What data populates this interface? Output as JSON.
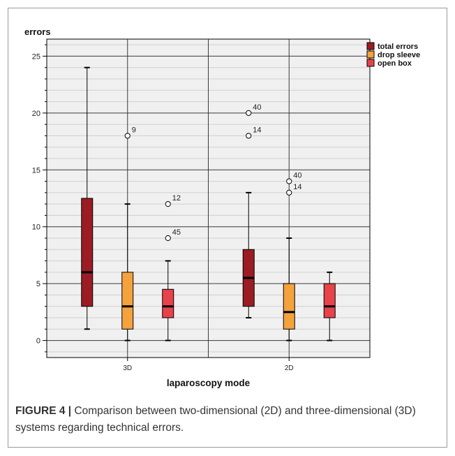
{
  "chart_data": {
    "type": "box",
    "ylabel": "errors",
    "xlabel": "laparoscopy mode",
    "ylim": [
      -1.5,
      26.5
    ],
    "yticks": [
      0,
      5,
      10,
      15,
      20,
      25
    ],
    "grid": true,
    "legend_position": "top-right",
    "categories": [
      "3D",
      "2D"
    ],
    "series": [
      {
        "name": "total errors",
        "color": "#9b1c23",
        "boxes": [
          {
            "category": "3D",
            "min": 1,
            "q1": 3,
            "median": 6,
            "q3": 12.5,
            "max": 24,
            "outliers": []
          },
          {
            "category": "2D",
            "min": 2,
            "q1": 3,
            "median": 5.5,
            "q3": 8,
            "max": 13,
            "outliers": [
              {
                "value": 20,
                "label": "40"
              },
              {
                "value": 18,
                "label": "14"
              }
            ]
          }
        ]
      },
      {
        "name": "drop sleeve",
        "color": "#f4a23e",
        "boxes": [
          {
            "category": "3D",
            "min": 0,
            "q1": 1,
            "median": 3,
            "q3": 6,
            "max": 12,
            "outliers": [
              {
                "value": 18,
                "label": "9"
              }
            ]
          },
          {
            "category": "2D",
            "min": 0,
            "q1": 1,
            "median": 2.5,
            "q3": 5,
            "max": 9,
            "outliers": [
              {
                "value": 14,
                "label": "40"
              },
              {
                "value": 13,
                "label": "14"
              }
            ]
          }
        ]
      },
      {
        "name": "open box",
        "color": "#e8424b",
        "boxes": [
          {
            "category": "3D",
            "min": 0,
            "q1": 2,
            "median": 3,
            "q3": 4.5,
            "max": 7,
            "outliers": [
              {
                "value": 12,
                "label": "12"
              },
              {
                "value": 9,
                "label": "45"
              }
            ]
          },
          {
            "category": "2D",
            "min": 0,
            "q1": 2,
            "median": 3,
            "q3": 5,
            "max": 6,
            "outliers": []
          }
        ]
      }
    ]
  },
  "caption": {
    "prefix": "FIGURE 4 |",
    "text": " Comparison between two-dimensional (2D) and three-dimensional (3D) systems regarding technical errors."
  }
}
